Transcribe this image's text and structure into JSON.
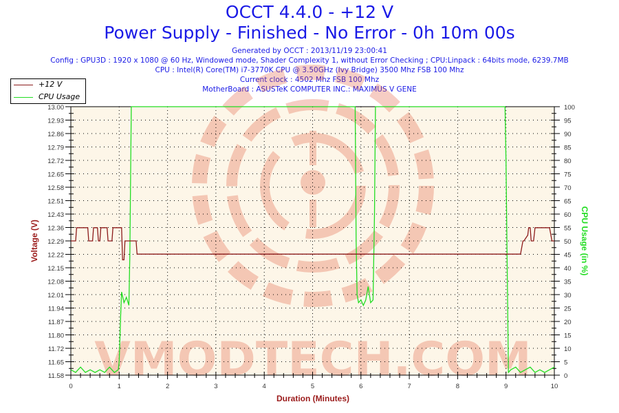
{
  "header": {
    "title": "OCCT 4.4.0 - +12 V",
    "subtitle": "Power Supply - Finished - No Error - 0h 10m 00s",
    "generated": "Generated by OCCT : 2013/11/19 23:00:41",
    "config": "Config : GPU3D : 1920 x 1080 @ 60 Hz, Windowed mode, Shader Complexity 1, without Error Checking ; CPU:Linpack : 64bits mode, 6239.7MB",
    "cpu": "CPU : Intel(R) Core(TM) i7-3770K CPU @ 3.50GHz (Ivy Bridge) 3500 Mhz FSB 100 Mhz",
    "clock": "Current clock : 4502 Mhz FSB 100 Mhz",
    "motherboard": "MotherBoard : ASUSTeK COMPUTER INC.: MAXIMUS V GENE"
  },
  "legend": {
    "items": [
      {
        "label": "+12 V",
        "color": "#8b1a1a"
      },
      {
        "label": "CPU Usage",
        "color": "#22dd22"
      }
    ]
  },
  "watermark": "VMODTECH.COM",
  "colors": {
    "title": "#1a1ae6",
    "voltage": "#8b1a1a",
    "cpu": "#22dd22",
    "plot_bg": "#fdf6e8",
    "axis_label_left": "#9b1b1b",
    "axis_label_right": "#22dd22",
    "xlabel": "#9b1b1b"
  },
  "chart_data": {
    "type": "line",
    "title": "OCCT 4.4.0 - +12 V",
    "subtitle": "Power Supply - Finished - No Error - 0h 10m 00s",
    "xlabel": "Duration (Minutes)",
    "ylabel": "Voltage (V)",
    "y2label": "CPU Usage (in %)",
    "xlim": [
      0,
      10
    ],
    "ylim": [
      11.58,
      13.0
    ],
    "y2lim": [
      0,
      100
    ],
    "x_ticks": [
      "0",
      "1",
      "2",
      "3",
      "4",
      "5",
      "6",
      "7",
      "8",
      "9",
      "10"
    ],
    "y_ticks": [
      "11.58",
      "11.65",
      "11.72",
      "11.80",
      "11.87",
      "11.94",
      "12.01",
      "12.08",
      "12.15",
      "12.22",
      "12.29",
      "12.36",
      "12.43",
      "12.51",
      "12.58",
      "12.65",
      "12.72",
      "12.79",
      "12.86",
      "12.93",
      "13.00"
    ],
    "y2_ticks": [
      "0",
      "5",
      "10",
      "15",
      "20",
      "25",
      "30",
      "35",
      "40",
      "45",
      "50",
      "55",
      "60",
      "65",
      "70",
      "75",
      "80",
      "85",
      "90",
      "95",
      "100"
    ],
    "grid": true,
    "legend_position": "top-left",
    "series": [
      {
        "name": "+12 V",
        "axis": "left",
        "x": [
          0,
          0.1,
          0.12,
          0.35,
          0.37,
          0.45,
          0.47,
          0.55,
          0.57,
          0.6,
          0.62,
          0.75,
          0.77,
          0.85,
          0.87,
          1.05,
          1.07,
          1.1,
          1.12,
          1.35,
          1.37,
          8.99,
          9.0,
          9.3,
          9.35,
          9.37,
          9.45,
          9.47,
          9.5,
          9.52,
          9.57,
          9.6,
          9.62,
          9.63,
          9.9,
          9.95,
          10
        ],
        "values": [
          12.29,
          12.29,
          12.36,
          12.36,
          12.29,
          12.29,
          12.36,
          12.36,
          12.29,
          12.29,
          12.36,
          12.36,
          12.29,
          12.29,
          12.36,
          12.36,
          12.19,
          12.19,
          12.29,
          12.29,
          12.22,
          12.22,
          12.22,
          12.22,
          12.29,
          12.29,
          12.32,
          12.36,
          12.36,
          12.29,
          12.29,
          12.36,
          12.36,
          12.36,
          12.36,
          12.29,
          12.29
        ]
      },
      {
        "name": "CPU Usage",
        "axis": "right",
        "x": [
          0,
          0.1,
          0.2,
          0.3,
          0.4,
          0.5,
          0.6,
          0.7,
          0.8,
          0.9,
          0.98,
          1.0,
          1.03,
          1.05,
          1.1,
          1.15,
          1.2,
          1.22,
          1.25,
          1.3,
          5.88,
          5.9,
          5.92,
          5.95,
          6.0,
          6.05,
          6.1,
          6.15,
          6.2,
          6.25,
          6.28,
          6.3,
          6.33,
          8.98,
          9.0,
          9.05,
          9.1,
          9.2,
          9.3,
          9.4,
          9.5,
          9.6,
          9.7,
          9.8,
          9.9,
          10
        ],
        "values": [
          2,
          1,
          3,
          1,
          2,
          1,
          2,
          1,
          3,
          1,
          2,
          5,
          22,
          31,
          27,
          29,
          26,
          45,
          100,
          100,
          100,
          50,
          30,
          27,
          28,
          26,
          28,
          33,
          27,
          28,
          60,
          100,
          100,
          100,
          80,
          1,
          2,
          3,
          1,
          2,
          3,
          1,
          2,
          1,
          2,
          3
        ]
      }
    ]
  }
}
